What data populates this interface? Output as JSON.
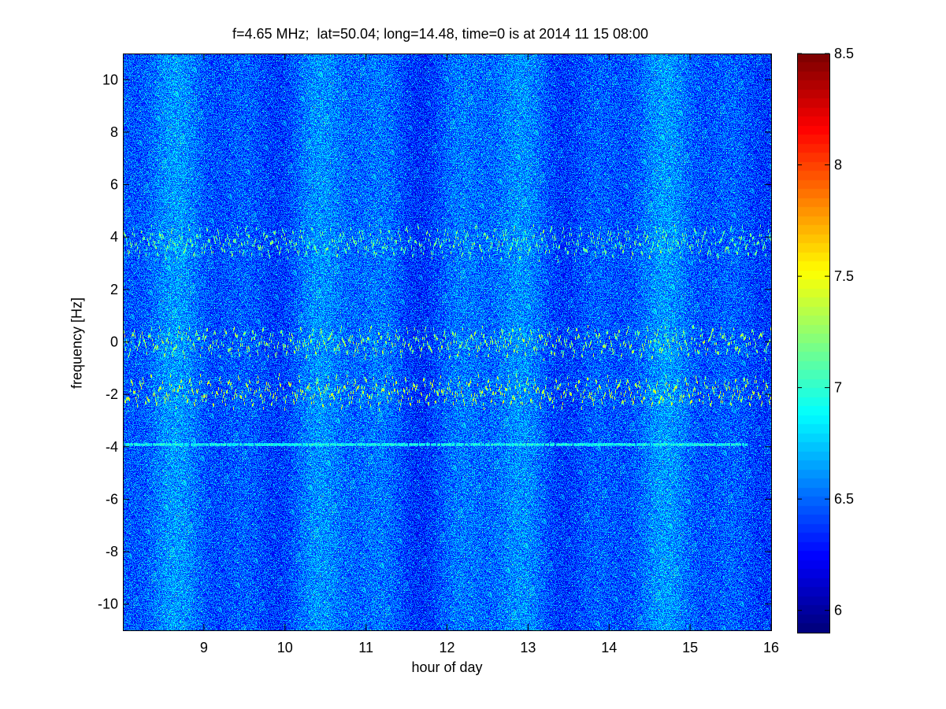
{
  "chart_data": {
    "type": "heatmap",
    "title": "f=4.65 MHz;  lat=50.04; long=14.48, time=0 is at 2014 11 15 08:00",
    "xlabel": "hour of day",
    "ylabel": "frequency [Hz]",
    "xlim": [
      8,
      16
    ],
    "ylim": [
      -11,
      11
    ],
    "xticks": [
      9,
      10,
      11,
      12,
      13,
      14,
      15,
      16
    ],
    "xtick_labels": [
      "9",
      "10",
      "11",
      "12",
      "13",
      "14",
      "15",
      "16"
    ],
    "yticks": [
      10,
      8,
      6,
      4,
      2,
      0,
      -2,
      -4,
      -6,
      -8,
      -10
    ],
    "ytick_labels": [
      "10",
      "8",
      "6",
      "4",
      "2",
      "0",
      "-2",
      "-4",
      "-6",
      "-8",
      "-10"
    ],
    "colorbar": {
      "range": [
        5.9,
        8.5
      ],
      "ticks": [
        8.5,
        8,
        7.5,
        7,
        6.5,
        6
      ],
      "tick_labels": [
        "8.5",
        "8",
        "7.5",
        "7",
        "6.5",
        "6"
      ],
      "colormap": "jet"
    },
    "background_level": 6.5,
    "features": [
      {
        "name": "Doppler trace near +3.8 Hz",
        "freq_hz": 3.8,
        "x_range": [
          8,
          16
        ],
        "level": 7.2
      },
      {
        "name": "Doppler trace near 0 Hz",
        "freq_hz": 0.0,
        "x_range": [
          8,
          16
        ],
        "level": 7.3
      },
      {
        "name": "Doppler trace near -1.9 Hz",
        "freq_hz": -1.9,
        "x_range": [
          8,
          16
        ],
        "level": 7.4
      },
      {
        "name": "Steady line at -3.9 Hz",
        "freq_hz": -3.9,
        "x_range": [
          8,
          15.7
        ],
        "level": 6.9
      }
    ],
    "grid": false
  },
  "colors": {
    "axis": "#000000",
    "background": "#ffffff",
    "plot_background": "#1e4fd6"
  }
}
